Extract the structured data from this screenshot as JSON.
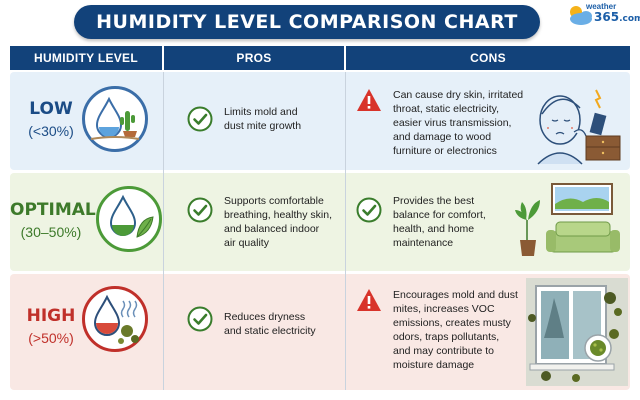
{
  "title": "HUMIDITY LEVEL COMPARISON CHART",
  "logo": {
    "top": "weather",
    "num": "365",
    "suffix": ".com"
  },
  "headers": {
    "level": "HUMIDITY LEVEL",
    "pros": "PROS",
    "cons": "CONS"
  },
  "rows": [
    {
      "level": "LOW",
      "range": "(<30%)",
      "color": "#1b4c86",
      "pros": [
        "Limits mold and",
        "dust mite growth"
      ],
      "cons": [
        "Can cause dry skin, irritated",
        "throat, static electricity,",
        "easier virus transmission,",
        "and damage to wood",
        "furniture or electronics"
      ]
    },
    {
      "level": "OPTIMAL",
      "range": "(30–50%)",
      "color": "#3d7a2a",
      "pros": [
        "Supports comfortable",
        "breathing, healthy skin,",
        "and balanced indoor",
        "air quality"
      ],
      "cons": [
        "Provides the best",
        "balance for comfort,",
        "health, and home",
        "maintenance"
      ]
    },
    {
      "level": "HIGH",
      "range": "(>50%)",
      "color": "#c0302a",
      "pros": [
        "Reduces dryness",
        "and static electricity"
      ],
      "cons": [
        "Encourages mold and dust",
        "mites, increases VOC",
        "emissions, creates musty",
        "odors, traps pollutants,",
        "and may contribute to",
        "moisture damage"
      ]
    }
  ],
  "colors": {
    "navy": "#12427a",
    "low_bg": "#e6f0f9",
    "optimal_bg": "#eef4e3",
    "high_bg": "#f9e8e4",
    "check_green": "#3a7d2c",
    "warn_red": "#d8332a"
  },
  "icons": {
    "low": "water-drop-cactus-icon",
    "optimal": "water-drop-leaf-icon",
    "high": "water-drop-mold-icon",
    "pros": "check-circle-icon",
    "cons_warn": "warning-triangle-icon"
  }
}
